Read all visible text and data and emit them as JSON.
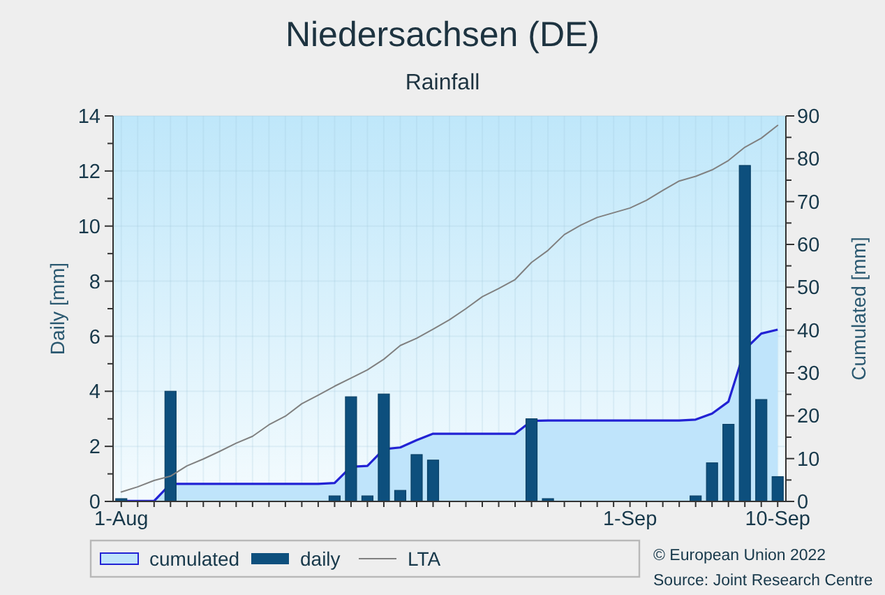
{
  "chart_data": {
    "type": "bar",
    "title": "Niedersachsen (DE)",
    "subtitle": "Rainfall",
    "ylabel": "Daily [mm]",
    "y2label": "Cumulated [mm]",
    "categories": [
      "1-Aug",
      null,
      null,
      null,
      null,
      null,
      null,
      null,
      null,
      null,
      null,
      null,
      null,
      null,
      null,
      null,
      null,
      null,
      null,
      null,
      null,
      null,
      null,
      null,
      null,
      null,
      null,
      null,
      null,
      null,
      null,
      "1-Sep",
      null,
      null,
      null,
      null,
      null,
      null,
      null,
      null,
      "10-Sep"
    ],
    "series": [
      {
        "name": "cumulated",
        "type": "area",
        "axis": "y2",
        "color": "#bfe4fb",
        "values": [
          0.1,
          0.1,
          0.1,
          4.1,
          4.1,
          4.1,
          4.1,
          4.1,
          4.1,
          4.1,
          4.1,
          4.1,
          4.1,
          4.3,
          8.1,
          8.3,
          12.2,
          12.6,
          14.3,
          15.8,
          15.8,
          15.8,
          15.8,
          15.8,
          15.8,
          18.8,
          18.9,
          18.9,
          18.9,
          18.9,
          18.9,
          18.9,
          18.9,
          18.9,
          18.9,
          19.1,
          20.5,
          23.3,
          35.5,
          39.2,
          40.1
        ]
      },
      {
        "name": "daily",
        "color": "#0d4f7d",
        "values": [
          0.1,
          0,
          0,
          4.0,
          0,
          0,
          0,
          0,
          0,
          0,
          0,
          0,
          0,
          0.2,
          3.8,
          0.2,
          3.9,
          0.4,
          1.7,
          1.5,
          0,
          0,
          0,
          0,
          0,
          3.0,
          0.1,
          0,
          0,
          0,
          0,
          0,
          0,
          0,
          0,
          0.2,
          1.4,
          2.8,
          12.2,
          3.7,
          0.9
        ]
      },
      {
        "name": "LTA",
        "type": "line",
        "axis": "y2",
        "color": "#808080",
        "values": [
          2.2,
          3.4,
          4.9,
          5.9,
          8.3,
          9.9,
          11.7,
          13.6,
          15.2,
          17.9,
          19.9,
          22.8,
          24.8,
          26.9,
          28.8,
          30.7,
          33.2,
          36.4,
          38.1,
          40.2,
          42.4,
          45.0,
          47.8,
          49.7,
          51.8,
          55.8,
          58.6,
          62.3,
          64.5,
          66.3,
          67.4,
          68.5,
          70.3,
          72.6,
          74.8,
          75.9,
          77.4,
          79.6,
          82.7,
          84.8,
          87.8
        ]
      }
    ],
    "ylim": [
      0,
      14
    ],
    "yticks": [
      0,
      {
        "value": 1,
        "label": null
      },
      2,
      {
        "value": 3,
        "label": null
      },
      4,
      {
        "value": 5,
        "label": null
      },
      6,
      {
        "value": 7,
        "label": null
      },
      8,
      {
        "value": 9,
        "label": null
      },
      10,
      {
        "value": 11,
        "label": null
      },
      12,
      {
        "value": 13,
        "label": null
      },
      14
    ],
    "y2lim": [
      0,
      90
    ],
    "y2ticks": [
      0,
      {
        "value": 5,
        "label": null
      },
      10,
      {
        "value": 15,
        "label": null
      },
      20,
      {
        "value": 25,
        "label": null
      },
      30,
      {
        "value": 35,
        "label": null
      },
      40,
      {
        "value": 45,
        "label": null
      },
      50,
      {
        "value": 55,
        "label": null
      },
      60,
      {
        "value": 65,
        "label": null
      },
      70,
      {
        "value": 75,
        "label": null
      },
      80,
      {
        "value": 85,
        "label": null
      },
      90
    ],
    "grid": true,
    "legend": "bottom",
    "marker": "none",
    "annotations": [
      "© European Union 2022",
      "Source: Joint Research Centre"
    ]
  }
}
